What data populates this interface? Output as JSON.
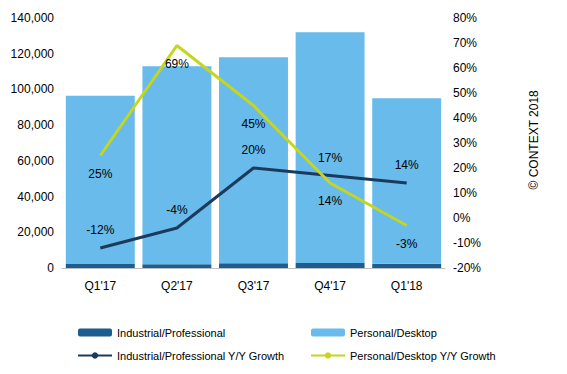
{
  "chart_data": {
    "type": "bar",
    "categories": [
      "Q1'17",
      "Q2'17",
      "Q3'17",
      "Q4'17",
      "Q1'18"
    ],
    "stacked": true,
    "grid": false,
    "legend": "bottom",
    "annotation": "© CONTEXT 2018",
    "ylim": [
      0,
      140000
    ],
    "yticks": [
      {
        "value": 0,
        "label": "0"
      },
      {
        "value": 20000,
        "label": "20,000"
      },
      {
        "value": 40000,
        "label": "40,000"
      },
      {
        "value": 60000,
        "label": "60,000"
      },
      {
        "value": 80000,
        "label": "80,000"
      },
      {
        "value": 100000,
        "label": "100,000"
      },
      {
        "value": 120000,
        "label": "120,000"
      },
      {
        "value": 140000,
        "label": "140,000"
      }
    ],
    "y2lim": [
      -20,
      80
    ],
    "y2ticks": [
      {
        "value": -20,
        "label": "-20%"
      },
      {
        "value": -10,
        "label": "-10%"
      },
      {
        "value": 0,
        "label": "0%"
      },
      {
        "value": 10,
        "label": "10%"
      },
      {
        "value": 20,
        "label": "20%"
      },
      {
        "value": 30,
        "label": "30%"
      },
      {
        "value": 40,
        "label": "40%"
      },
      {
        "value": 50,
        "label": "50%"
      },
      {
        "value": 60,
        "label": "60%"
      },
      {
        "value": 70,
        "label": "70%"
      },
      {
        "value": 80,
        "label": "80%"
      }
    ],
    "series": [
      {
        "name": "Industrial/Professional",
        "type": "bar",
        "color": "#1d5d8f",
        "values": [
          2200,
          2100,
          2700,
          2800,
          2400
        ]
      },
      {
        "name": "Personal/Desktop",
        "type": "bar",
        "color": "#68bbea",
        "values": [
          94300,
          110900,
          115300,
          129200,
          92600
        ]
      },
      {
        "name": "Industrial/Professional Y/Y Growth",
        "type": "line",
        "axis": "y2",
        "color": "#1b3a5c",
        "marker": "none",
        "data_labels": true,
        "values": [
          -12,
          -4,
          20,
          17,
          14
        ],
        "value_labels": [
          "-12%",
          "-4%",
          "20%",
          "17%",
          "14%"
        ]
      },
      {
        "name": "Personal/Desktop Y/Y Growth",
        "type": "line",
        "axis": "y2",
        "color": "#c6d61e",
        "marker": "none",
        "data_labels": true,
        "values": [
          25,
          69,
          45,
          14,
          -3
        ],
        "value_labels": [
          "25%",
          "69%",
          "45%",
          "14%",
          "-3%"
        ]
      }
    ]
  }
}
